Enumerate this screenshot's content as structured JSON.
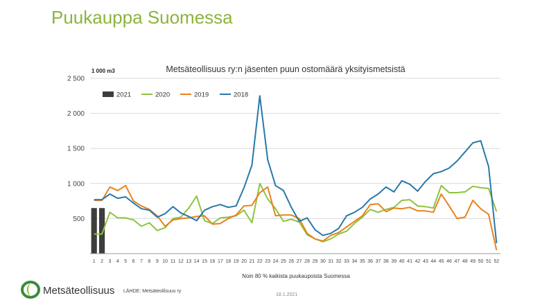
{
  "slide": {
    "title": "Puukauppa Suomessa",
    "logo_text": "Metsäteollisuus",
    "source": "LÄHDE:  Metsäteollisuus ry",
    "date": "18.1.2021"
  },
  "colors": {
    "title": "#8cb43c",
    "series_2021": "#3d3d3d",
    "series_2020": "#8cc43c",
    "series_2019": "#e8821e",
    "series_2018": "#2878a8",
    "logo_green": "#3a8a3a"
  },
  "chart_data": {
    "type": "line",
    "title": "Metsäteollisuus ry:n jäsenten puun ostomäärä yksityismetsistä",
    "unit_label": "1 000 m3",
    "xlabel": "Noin 80 % kaikista puukaupoista Suomessa",
    "ylabel": "",
    "ylim": [
      0,
      2500
    ],
    "yticks": [
      0,
      500,
      1000,
      1500,
      2000,
      2500
    ],
    "ytick_labels": [
      "",
      "500",
      "1 000",
      "1 500",
      "2 000",
      "2 500"
    ],
    "x": [
      1,
      2,
      3,
      4,
      5,
      6,
      7,
      8,
      9,
      10,
      11,
      12,
      13,
      14,
      15,
      16,
      17,
      18,
      19,
      20,
      21,
      22,
      23,
      24,
      25,
      26,
      27,
      28,
      29,
      30,
      31,
      32,
      33,
      34,
      35,
      36,
      37,
      38,
      39,
      40,
      41,
      42,
      43,
      44,
      45,
      46,
      47,
      48,
      49,
      50,
      51,
      52
    ],
    "grid": "horizontal",
    "legend_position": "top-left",
    "legend": [
      "2021",
      "2020",
      "2019",
      "2018"
    ],
    "series": [
      {
        "name": "2021",
        "type": "bar",
        "x": [
          1,
          2
        ],
        "values": [
          650,
          650
        ]
      },
      {
        "name": "2020",
        "type": "line",
        "values": [
          280,
          280,
          590,
          510,
          510,
          480,
          390,
          440,
          330,
          370,
          500,
          520,
          650,
          820,
          470,
          430,
          510,
          520,
          540,
          620,
          440,
          1000,
          780,
          640,
          460,
          490,
          450,
          270,
          210,
          170,
          210,
          280,
          320,
          430,
          520,
          630,
          590,
          630,
          660,
          760,
          770,
          680,
          670,
          650,
          970,
          870,
          870,
          880,
          960,
          940,
          930,
          600
        ]
      },
      {
        "name": "2019",
        "type": "line",
        "values": [
          760,
          760,
          950,
          900,
          970,
          750,
          680,
          630,
          540,
          390,
          480,
          500,
          510,
          530,
          540,
          420,
          430,
          500,
          550,
          680,
          690,
          870,
          950,
          540,
          550,
          550,
          500,
          290,
          210,
          180,
          260,
          300,
          380,
          460,
          540,
          700,
          710,
          600,
          650,
          640,
          660,
          610,
          610,
          590,
          850,
          680,
          500,
          520,
          760,
          640,
          560,
          50
        ]
      },
      {
        "name": "2018",
        "type": "line",
        "values": [
          770,
          770,
          850,
          790,
          810,
          720,
          640,
          620,
          520,
          570,
          670,
          580,
          530,
          470,
          620,
          670,
          700,
          660,
          680,
          940,
          1260,
          2250,
          1340,
          970,
          900,
          660,
          460,
          510,
          340,
          260,
          290,
          360,
          540,
          590,
          660,
          780,
          850,
          950,
          880,
          1040,
          990,
          890,
          1030,
          1140,
          1170,
          1220,
          1320,
          1450,
          1580,
          1610,
          1240,
          150
        ]
      }
    ]
  }
}
